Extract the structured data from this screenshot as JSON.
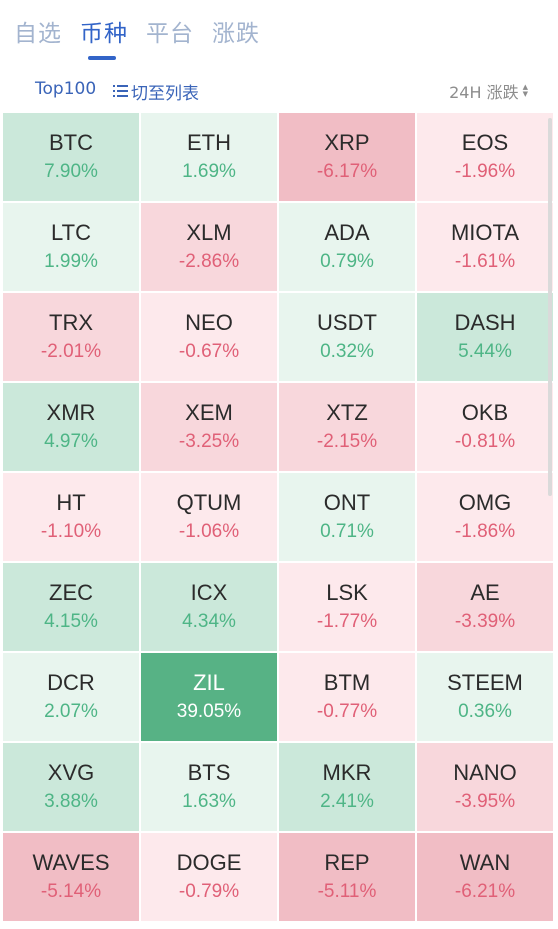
{
  "tabs": [
    {
      "label": "自选",
      "active": false
    },
    {
      "label": "币种",
      "active": true
    },
    {
      "label": "平台",
      "active": false
    },
    {
      "label": "涨跌",
      "active": false
    }
  ],
  "toolbar": {
    "top100_label": "Top100",
    "list_toggle_label": "切至列表",
    "sort_label": "24H 涨跌"
  },
  "colors": {
    "accent": "#3264c8",
    "up_text": "#4eb586",
    "down_text": "#e06077",
    "up_bg_strong": "#57b285",
    "up_bg_mid": "#cbe8da",
    "up_bg_light": "#e8f5ee",
    "down_bg_deep": "#f1bdc5",
    "down_bg_mid": "#f8d7dc",
    "down_bg_light": "#fde9ec"
  },
  "coins": [
    {
      "symbol": "BTC",
      "change": "7.90%",
      "direction": "up",
      "intensity": 2
    },
    {
      "symbol": "ETH",
      "change": "1.69%",
      "direction": "up",
      "intensity": 1
    },
    {
      "symbol": "XRP",
      "change": "-6.17%",
      "direction": "down",
      "intensity": 3
    },
    {
      "symbol": "EOS",
      "change": "-1.96%",
      "direction": "down",
      "intensity": 1
    },
    {
      "symbol": "LTC",
      "change": "1.99%",
      "direction": "up",
      "intensity": 1
    },
    {
      "symbol": "XLM",
      "change": "-2.86%",
      "direction": "down",
      "intensity": 2
    },
    {
      "symbol": "ADA",
      "change": "0.79%",
      "direction": "up",
      "intensity": 1
    },
    {
      "symbol": "MIOTA",
      "change": "-1.61%",
      "direction": "down",
      "intensity": 1
    },
    {
      "symbol": "TRX",
      "change": "-2.01%",
      "direction": "down",
      "intensity": 2
    },
    {
      "symbol": "NEO",
      "change": "-0.67%",
      "direction": "down",
      "intensity": 1
    },
    {
      "symbol": "USDT",
      "change": "0.32%",
      "direction": "up",
      "intensity": 1
    },
    {
      "symbol": "DASH",
      "change": "5.44%",
      "direction": "up",
      "intensity": 2
    },
    {
      "symbol": "XMR",
      "change": "4.97%",
      "direction": "up",
      "intensity": 2
    },
    {
      "symbol": "XEM",
      "change": "-3.25%",
      "direction": "down",
      "intensity": 2
    },
    {
      "symbol": "XTZ",
      "change": "-2.15%",
      "direction": "down",
      "intensity": 2
    },
    {
      "symbol": "OKB",
      "change": "-0.81%",
      "direction": "down",
      "intensity": 1
    },
    {
      "symbol": "HT",
      "change": "-1.10%",
      "direction": "down",
      "intensity": 1
    },
    {
      "symbol": "QTUM",
      "change": "-1.06%",
      "direction": "down",
      "intensity": 1
    },
    {
      "symbol": "ONT",
      "change": "0.71%",
      "direction": "up",
      "intensity": 1
    },
    {
      "symbol": "OMG",
      "change": "-1.86%",
      "direction": "down",
      "intensity": 1
    },
    {
      "symbol": "ZEC",
      "change": "4.15%",
      "direction": "up",
      "intensity": 2
    },
    {
      "symbol": "ICX",
      "change": "4.34%",
      "direction": "up",
      "intensity": 2
    },
    {
      "symbol": "LSK",
      "change": "-1.77%",
      "direction": "down",
      "intensity": 1
    },
    {
      "symbol": "AE",
      "change": "-3.39%",
      "direction": "down",
      "intensity": 2
    },
    {
      "symbol": "DCR",
      "change": "2.07%",
      "direction": "up",
      "intensity": 1
    },
    {
      "symbol": "ZIL",
      "change": "39.05%",
      "direction": "up",
      "intensity": 3
    },
    {
      "symbol": "BTM",
      "change": "-0.77%",
      "direction": "down",
      "intensity": 1
    },
    {
      "symbol": "STEEM",
      "change": "0.36%",
      "direction": "up",
      "intensity": 1
    },
    {
      "symbol": "XVG",
      "change": "3.88%",
      "direction": "up",
      "intensity": 2
    },
    {
      "symbol": "BTS",
      "change": "1.63%",
      "direction": "up",
      "intensity": 1
    },
    {
      "symbol": "MKR",
      "change": "2.41%",
      "direction": "up",
      "intensity": 2
    },
    {
      "symbol": "NANO",
      "change": "-3.95%",
      "direction": "down",
      "intensity": 2
    },
    {
      "symbol": "WAVES",
      "change": "-5.14%",
      "direction": "down",
      "intensity": 3
    },
    {
      "symbol": "DOGE",
      "change": "-0.79%",
      "direction": "down",
      "intensity": 1
    },
    {
      "symbol": "REP",
      "change": "-5.11%",
      "direction": "down",
      "intensity": 3
    },
    {
      "symbol": "WAN",
      "change": "-6.21%",
      "direction": "down",
      "intensity": 3
    }
  ]
}
